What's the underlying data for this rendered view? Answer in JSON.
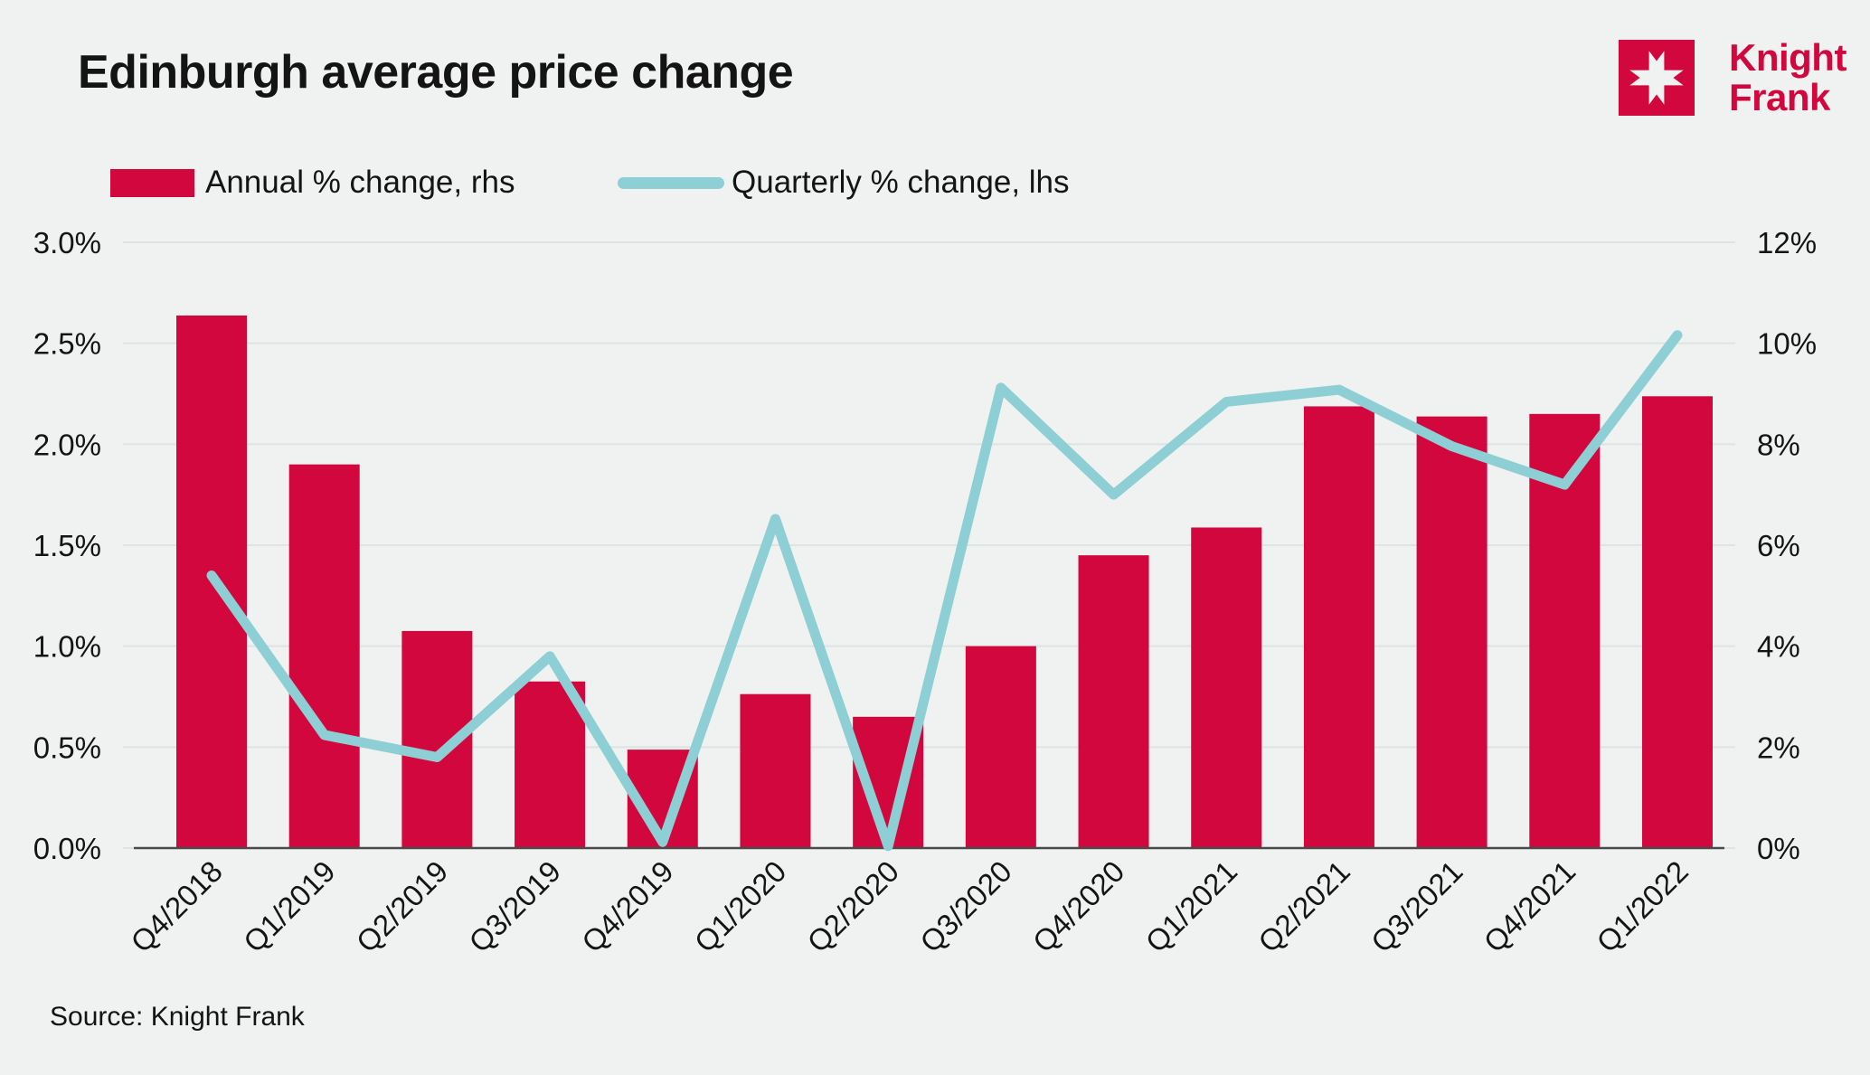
{
  "header": {
    "title": "Edinburgh average price change",
    "logo": {
      "line1": "Knight",
      "line2": "Frank"
    }
  },
  "legend": [
    {
      "label": "Annual % change, rhs",
      "swatch": "bar"
    },
    {
      "label": "Quarterly % change, lhs",
      "swatch": "line"
    }
  ],
  "source": "Source: Knight Frank",
  "colors": {
    "brand_red": "#D2073D",
    "line_teal": "#8DCFD5",
    "background": "#EFF2F1",
    "gridline": "#DFE3E2",
    "axis_line": "#4A4A4B",
    "text": "#141414"
  },
  "chart_data": {
    "type": "bar",
    "subtype": "dual-axis bar+line",
    "title": "Edinburgh average price change",
    "categories": [
      "Q4/2018",
      "Q1/2019",
      "Q2/2019",
      "Q3/2019",
      "Q4/2019",
      "Q1/2020",
      "Q2/2020",
      "Q3/2020",
      "Q4/2020",
      "Q1/2021",
      "Q2/2021",
      "Q3/2021",
      "Q4/2021",
      "Q1/2022"
    ],
    "series": [
      {
        "name": "Annual % change, rhs",
        "type": "bar",
        "axis": "right",
        "values": [
          10.55,
          7.6,
          4.3,
          3.3,
          1.95,
          3.05,
          2.6,
          4.0,
          5.8,
          6.35,
          8.75,
          8.55,
          8.6,
          8.95
        ]
      },
      {
        "name": "Quarterly % change, lhs",
        "type": "line",
        "axis": "left",
        "values": [
          1.35,
          0.56,
          0.45,
          0.95,
          0.03,
          1.63,
          0.01,
          2.28,
          1.75,
          2.21,
          2.27,
          1.99,
          1.8,
          2.54
        ]
      }
    ],
    "left_axis": {
      "label": "Quarterly % change",
      "min": 0,
      "max": 3,
      "ticks": [
        "3.0%",
        "2.5%",
        "2.0%",
        "1.5%",
        "1.0%",
        "0.5%",
        "0.0%"
      ]
    },
    "right_axis": {
      "label": "Annual % change",
      "min": 0,
      "max": 12,
      "ticks": [
        "12%",
        "10%",
        "8%",
        "6%",
        "4%",
        "2%",
        "0%"
      ]
    },
    "grid": true,
    "legend_position": "top-left",
    "x_label_rotation": -45
  }
}
